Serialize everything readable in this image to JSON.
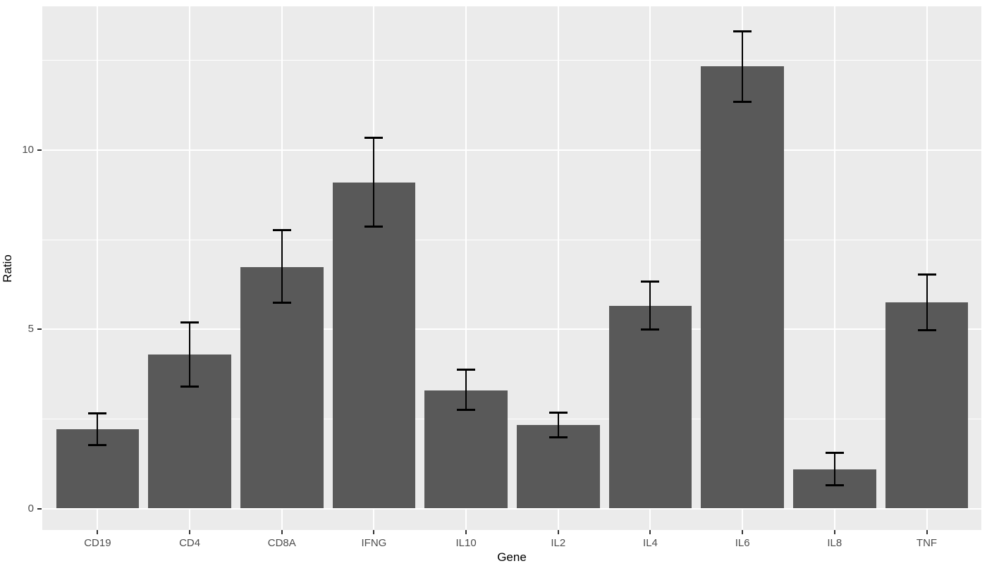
{
  "chart_data": {
    "type": "bar",
    "title": "",
    "xlabel": "Gene",
    "ylabel": "Ratio",
    "categories": [
      "CD19",
      "CD4",
      "CD8A",
      "IFNG",
      "IL10",
      "IL2",
      "IL4",
      "IL6",
      "IL8",
      "TNF"
    ],
    "series": [
      {
        "name": "Ratio",
        "values": [
          2.21,
          4.29,
          6.74,
          9.1,
          3.3,
          2.33,
          5.66,
          12.33,
          1.09,
          5.75
        ],
        "error_low": [
          1.77,
          3.41,
          5.74,
          7.87,
          2.75,
          1.99,
          4.99,
          11.35,
          0.65,
          4.97
        ],
        "error_high": [
          2.65,
          5.19,
          7.76,
          10.34,
          3.87,
          2.68,
          6.34,
          13.32,
          1.56,
          6.53
        ]
      }
    ],
    "y_major_ticks": [
      0,
      5,
      10
    ],
    "y_tick_labels": [
      "0",
      "5",
      "10"
    ],
    "y_minor_ticks": [
      2.5,
      7.5,
      12.5
    ],
    "ylim": [
      -0.6,
      14.01
    ],
    "grid": "major-and-minor",
    "legend_position": "none",
    "colors": {
      "panel_background": "#EBEBEB",
      "gridline": "#FFFFFF",
      "bar_fill": "#595959",
      "errorbar": "#000000",
      "axis_text": "#4D4D4D",
      "tick_mark": "#333333",
      "axis_title": "#000000",
      "figure_background": "#FFFFFF"
    }
  }
}
